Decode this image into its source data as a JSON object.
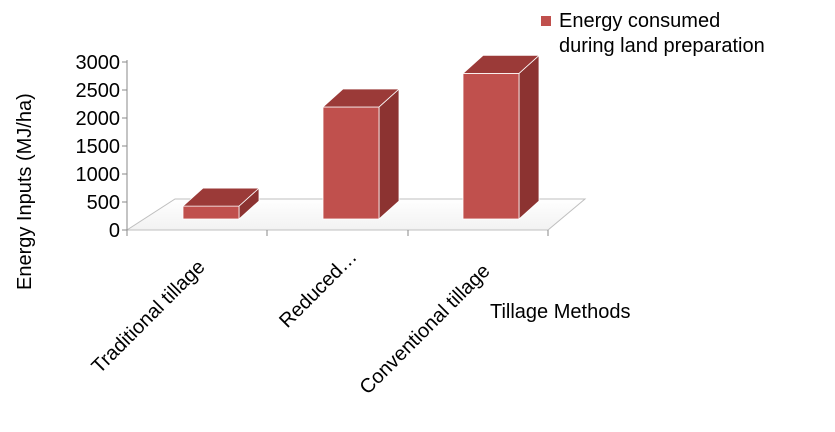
{
  "chart_data": {
    "type": "bar",
    "style": "3d-column",
    "categories": [
      "Traditional tillage",
      "Reduced…",
      "Conventional tillage"
    ],
    "series": [
      {
        "name": "Energy consumed during land preparation",
        "values": [
          230,
          2000,
          2600
        ],
        "color": "#c0504d"
      }
    ],
    "xlabel": "Tillage Methods",
    "ylabel": "Energy Inputs (MJ/ha)",
    "ylim": [
      0,
      3000
    ],
    "yticks": [
      0,
      500,
      1000,
      1500,
      2000,
      2500,
      3000
    ],
    "grid": false,
    "legend": {
      "position": "top-right",
      "lines": [
        "Energy consumed",
        "during land preparation"
      ]
    }
  }
}
